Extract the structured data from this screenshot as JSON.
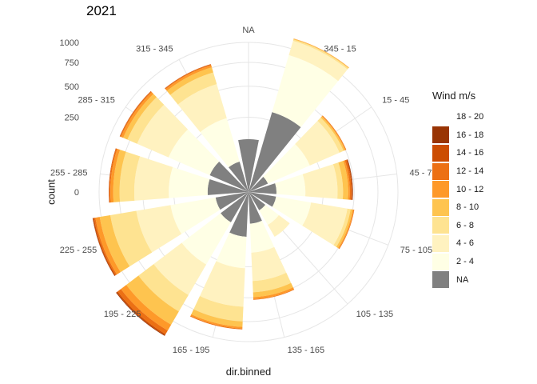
{
  "chart_data": {
    "type": "bar",
    "polar": true,
    "title": "2021",
    "xlabel": "dir.binned",
    "ylabel": "count",
    "ylim": [
      0,
      1000
    ],
    "yticks": [
      0,
      250,
      500,
      750,
      1000
    ],
    "yticklabels": [
      "0",
      "250",
      "500",
      "750",
      "1000"
    ],
    "grid": true,
    "legend_position": "right",
    "legend_title": "Wind m/s",
    "categories": [
      "NA",
      "345 - 15",
      "15 - 45",
      "45 - 75",
      "75 - 105",
      "105 - 135",
      "135 - 165",
      "165 - 195",
      "195 - 225",
      "225 - 255",
      "255 - 285",
      "285 - 315",
      "315 - 345"
    ],
    "stack_order": [
      "NA",
      "2 - 4",
      "4 - 6",
      "6 - 8",
      "8 - 10",
      "10 - 12",
      "12 - 14",
      "14 - 16",
      "16 - 18",
      "18 - 20"
    ],
    "legend": [
      {
        "name": "18 - 20",
        "color": "#ffffff"
      },
      {
        "name": "16 - 18",
        "color": "#993404"
      },
      {
        "name": "14 - 16",
        "color": "#cc4c02"
      },
      {
        "name": "12 - 14",
        "color": "#ec7014"
      },
      {
        "name": "10 - 12",
        "color": "#fe9929"
      },
      {
        "name": "8 - 10",
        "color": "#fec44f"
      },
      {
        "name": "6 - 8",
        "color": "#fee391"
      },
      {
        "name": "4 - 6",
        "color": "#fff2c0"
      },
      {
        "name": "2 - 4",
        "color": "#ffffe5"
      },
      {
        "name": "NA",
        "color": "#808080"
      }
    ],
    "series": [
      {
        "name": "NA",
        "values": [
          125,
          310,
          20,
          35,
          35,
          20,
          45,
          90,
          55,
          50,
          75,
          80,
          45
        ]
      },
      {
        "name": "2 - 4",
        "values": [
          0,
          600,
          180,
          110,
          145,
          45,
          120,
          170,
          260,
          230,
          210,
          260,
          220
        ]
      },
      {
        "name": "4 - 6",
        "values": [
          0,
          200,
          240,
          210,
          270,
          55,
          190,
          330,
          320,
          300,
          300,
          320,
          300
        ]
      },
      {
        "name": "6 - 8",
        "values": [
          0,
          20,
          40,
          45,
          30,
          0,
          95,
          160,
          220,
          300,
          160,
          120,
          130
        ]
      },
      {
        "name": "8 - 10",
        "values": [
          0,
          10,
          15,
          45,
          20,
          0,
          45,
          65,
          200,
          140,
          75,
          55,
          60
        ]
      },
      {
        "name": "10 - 12",
        "values": [
          0,
          5,
          8,
          15,
          10,
          0,
          20,
          20,
          95,
          60,
          35,
          30,
          25
        ]
      },
      {
        "name": "12 - 14",
        "values": [
          0,
          0,
          5,
          15,
          5,
          0,
          5,
          10,
          60,
          20,
          15,
          12,
          10
        ]
      },
      {
        "name": "14 - 16",
        "values": [
          0,
          0,
          0,
          8,
          0,
          0,
          0,
          0,
          20,
          15,
          5,
          5,
          5
        ]
      },
      {
        "name": "16 - 18",
        "values": [
          0,
          0,
          0,
          5,
          0,
          0,
          0,
          0,
          10,
          5,
          0,
          0,
          0
        ]
      },
      {
        "name": "18 - 20",
        "values": [
          0,
          0,
          0,
          0,
          0,
          0,
          0,
          0,
          0,
          0,
          0,
          0,
          0
        ]
      }
    ]
  }
}
